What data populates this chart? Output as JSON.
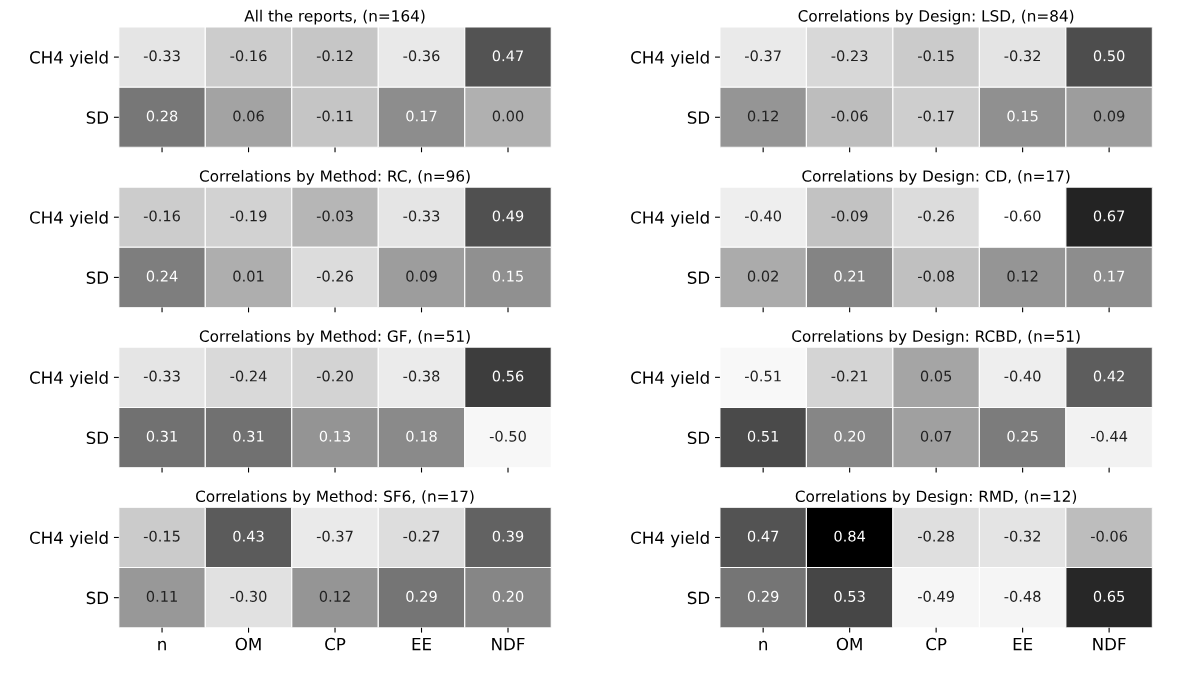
{
  "chart_data": [
    {
      "type": "heatmap",
      "title": "All the reports, (n=164)",
      "categories": [
        "n",
        "OM",
        "CP",
        "EE",
        "NDF"
      ],
      "y_categories": [
        "CH4 yield",
        "SD"
      ],
      "tick_labels": "y",
      "cells": [
        [
          -0.33,
          -0.16,
          -0.12,
          -0.36,
          0.47
        ],
        [
          0.28,
          0.06,
          -0.11,
          0.17,
          0.0
        ]
      ],
      "cell_labels": [
        [
          "-0.33",
          "-0.16",
          "-0.12",
          "-0.36",
          "0.47"
        ],
        [
          "0.28",
          "0.06",
          "-0.11",
          "0.17",
          "0.00"
        ]
      ]
    },
    {
      "type": "heatmap",
      "title": "Correlations by Design: LSD, (n=84)",
      "categories": [
        "n",
        "OM",
        "CP",
        "EE",
        "NDF"
      ],
      "y_categories": [
        "CH4 yield",
        "SD"
      ],
      "tick_labels": "y",
      "cells": [
        [
          -0.37,
          -0.23,
          -0.15,
          -0.32,
          0.5
        ],
        [
          0.12,
          -0.06,
          -0.17,
          0.15,
          0.09
        ]
      ],
      "cell_labels": [
        [
          "-0.37",
          "-0.23",
          "-0.15",
          "-0.32",
          "0.50"
        ],
        [
          "0.12",
          "-0.06",
          "-0.17",
          "0.15",
          "0.09"
        ]
      ]
    },
    {
      "type": "heatmap",
      "title": "Correlations by Method: RC, (n=96)",
      "categories": [
        "n",
        "OM",
        "CP",
        "EE",
        "NDF"
      ],
      "y_categories": [
        "CH4 yield",
        "SD"
      ],
      "tick_labels": "y",
      "cells": [
        [
          -0.16,
          -0.19,
          -0.03,
          -0.33,
          0.49
        ],
        [
          0.24,
          0.01,
          -0.26,
          0.09,
          0.15
        ]
      ],
      "cell_labels": [
        [
          "-0.16",
          "-0.19",
          "-0.03",
          "-0.33",
          "0.49"
        ],
        [
          "0.24",
          "0.01",
          "-0.26",
          "0.09",
          "0.15"
        ]
      ]
    },
    {
      "type": "heatmap",
      "title": "Correlations by Design: CD, (n=17)",
      "categories": [
        "n",
        "OM",
        "CP",
        "EE",
        "NDF"
      ],
      "y_categories": [
        "CH4 yield",
        "SD"
      ],
      "tick_labels": "y",
      "cells": [
        [
          -0.4,
          -0.09,
          -0.26,
          -0.6,
          0.67
        ],
        [
          0.02,
          0.21,
          -0.08,
          0.12,
          0.17
        ]
      ],
      "cell_labels": [
        [
          "-0.40",
          "-0.09",
          "-0.26",
          "-0.60",
          "0.67"
        ],
        [
          "0.02",
          "0.21",
          "-0.08",
          "0.12",
          "0.17"
        ]
      ]
    },
    {
      "type": "heatmap",
      "title": "Correlations by Method: GF, (n=51)",
      "categories": [
        "n",
        "OM",
        "CP",
        "EE",
        "NDF"
      ],
      "y_categories": [
        "CH4 yield",
        "SD"
      ],
      "tick_labels": "y",
      "cells": [
        [
          -0.33,
          -0.24,
          -0.2,
          -0.38,
          0.56
        ],
        [
          0.31,
          0.31,
          0.13,
          0.18,
          -0.5
        ]
      ],
      "cell_labels": [
        [
          "-0.33",
          "-0.24",
          "-0.20",
          "-0.38",
          "0.56"
        ],
        [
          "0.31",
          "0.31",
          "0.13",
          "0.18",
          "-0.50"
        ]
      ]
    },
    {
      "type": "heatmap",
      "title": "Correlations by Design: RCBD, (n=51)",
      "categories": [
        "n",
        "OM",
        "CP",
        "EE",
        "NDF"
      ],
      "y_categories": [
        "CH4 yield",
        "SD"
      ],
      "tick_labels": "y",
      "cells": [
        [
          -0.51,
          -0.21,
          0.05,
          -0.4,
          0.42
        ],
        [
          0.51,
          0.2,
          0.07,
          0.25,
          -0.44
        ]
      ],
      "cell_labels": [
        [
          "-0.51",
          "-0.21",
          "0.05",
          "-0.40",
          "0.42"
        ],
        [
          "0.51",
          "0.20",
          "0.07",
          "0.25",
          "-0.44"
        ]
      ]
    },
    {
      "type": "heatmap",
      "title": "Correlations by Method: SF6, (n=17)",
      "categories": [
        "n",
        "OM",
        "CP",
        "EE",
        "NDF"
      ],
      "y_categories": [
        "CH4 yield",
        "SD"
      ],
      "cells": [
        [
          -0.15,
          0.43,
          -0.37,
          -0.27,
          0.39
        ],
        [
          0.11,
          -0.3,
          0.12,
          0.29,
          0.2
        ]
      ],
      "cell_labels": [
        [
          "-0.15",
          "0.43",
          "-0.37",
          "-0.27",
          "0.39"
        ],
        [
          "0.11",
          "-0.30",
          "0.12",
          "0.29",
          "0.20"
        ]
      ]
    },
    {
      "type": "heatmap",
      "title": "Correlations by Design: RMD, (n=12)",
      "categories": [
        "n",
        "OM",
        "CP",
        "EE",
        "NDF"
      ],
      "y_categories": [
        "CH4 yield",
        "SD"
      ],
      "cells": [
        [
          0.47,
          0.84,
          -0.28,
          -0.32,
          -0.06
        ],
        [
          0.29,
          0.53,
          -0.49,
          -0.48,
          0.65
        ]
      ],
      "cell_labels": [
        [
          "0.47",
          "0.84",
          "-0.28",
          "-0.32",
          "-0.06"
        ],
        [
          "0.29",
          "0.53",
          "-0.49",
          "-0.48",
          "0.65"
        ]
      ]
    }
  ]
}
